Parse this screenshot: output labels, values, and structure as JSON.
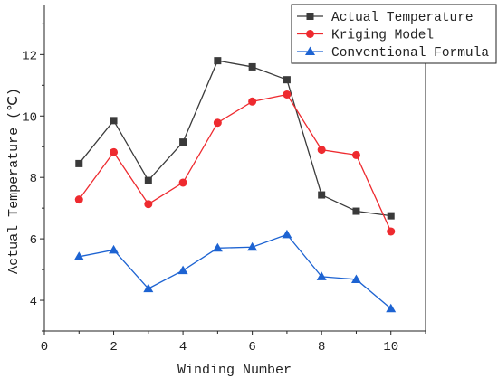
{
  "chart_data": {
    "type": "line",
    "x": [
      1,
      2,
      3,
      4,
      5,
      6,
      7,
      8,
      9,
      10
    ],
    "series": [
      {
        "name": "Actual Temperature",
        "values": [
          8.45,
          9.85,
          7.9,
          9.15,
          11.8,
          11.6,
          11.18,
          7.43,
          6.9,
          6.75
        ],
        "color": "#3a3a3a",
        "marker": "square"
      },
      {
        "name": "Kriging Model",
        "values": [
          7.28,
          8.82,
          7.13,
          7.83,
          9.78,
          10.47,
          10.7,
          8.9,
          8.73,
          6.24
        ],
        "color": "#ee2a2f",
        "marker": "circle"
      },
      {
        "name": "Conventional Formula",
        "values": [
          5.42,
          5.64,
          4.38,
          4.97,
          5.7,
          5.73,
          6.14,
          4.77,
          4.68,
          3.73
        ],
        "color": "#1d63d2",
        "marker": "triangle"
      }
    ],
    "xlabel": "Winding Number",
    "ylabel": "Actual Temperature (℃)",
    "xlim": [
      0,
      11
    ],
    "ylim": [
      3,
      13.6
    ],
    "xticks": [
      0,
      2,
      4,
      6,
      8,
      10
    ],
    "yticks": [
      4,
      6,
      8,
      10,
      12
    ],
    "grid": false,
    "legend": "top-right"
  }
}
